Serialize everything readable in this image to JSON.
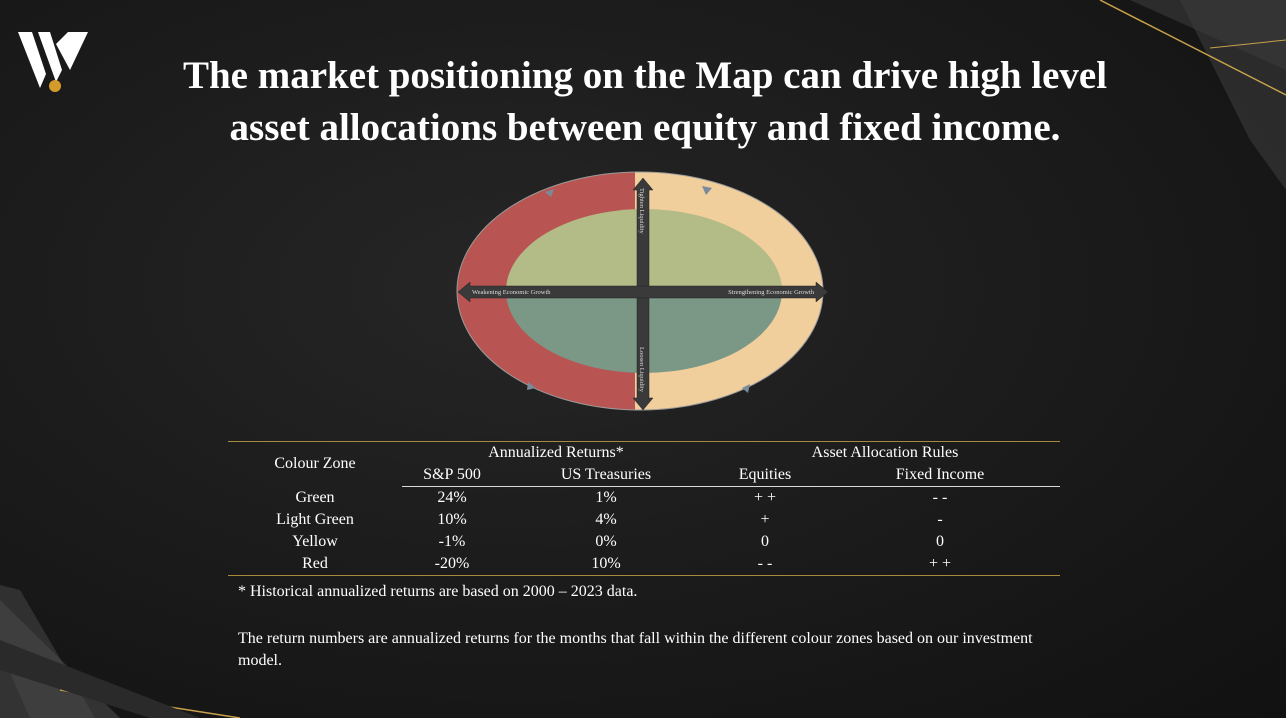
{
  "slide": {
    "title_line1": "The market positioning on the Map can drive high level",
    "title_line2": "asset allocations between equity and fixed income."
  },
  "map": {
    "axis_top": "Tighten Liquidity",
    "axis_bottom": "Loosen Liquidity",
    "axis_left": "Weakening Economic Growth",
    "axis_right": "Strengthening Economic Growth",
    "colors": {
      "red_zone": "#b85552",
      "yellow_zone": "#f1cf9c",
      "light_green_zone": "#b3bb87",
      "green_zone": "#7a9885",
      "axis": "#3a3a3a"
    }
  },
  "table": {
    "colour_zone_header": "Colour Zone",
    "returns_group": "Annualized Returns*",
    "rules_group": "Asset Allocation Rules",
    "sub_headers": [
      "S&P 500",
      "US Treasuries",
      "Equities",
      "Fixed Income"
    ],
    "rows": [
      {
        "zone": "Green",
        "sp500": "24%",
        "treasuries": "1%",
        "equities": "+ +",
        "fixed_income": "- -"
      },
      {
        "zone": "Light Green",
        "sp500": "10%",
        "treasuries": "4%",
        "equities": "+",
        "fixed_income": "-"
      },
      {
        "zone": "Yellow",
        "sp500": "-1%",
        "treasuries": "0%",
        "equities": "0",
        "fixed_income": "0"
      },
      {
        "zone": "Red",
        "sp500": "-20%",
        "treasuries": "10%",
        "equities": "- -",
        "fixed_income": "+ +"
      }
    ]
  },
  "notes": {
    "footnote": "* Historical annualized returns are based on 2000 – 2023 data.",
    "explanation": "The return numbers are annualized returns for the months that fall within the different colour zones based on our investment model."
  }
}
